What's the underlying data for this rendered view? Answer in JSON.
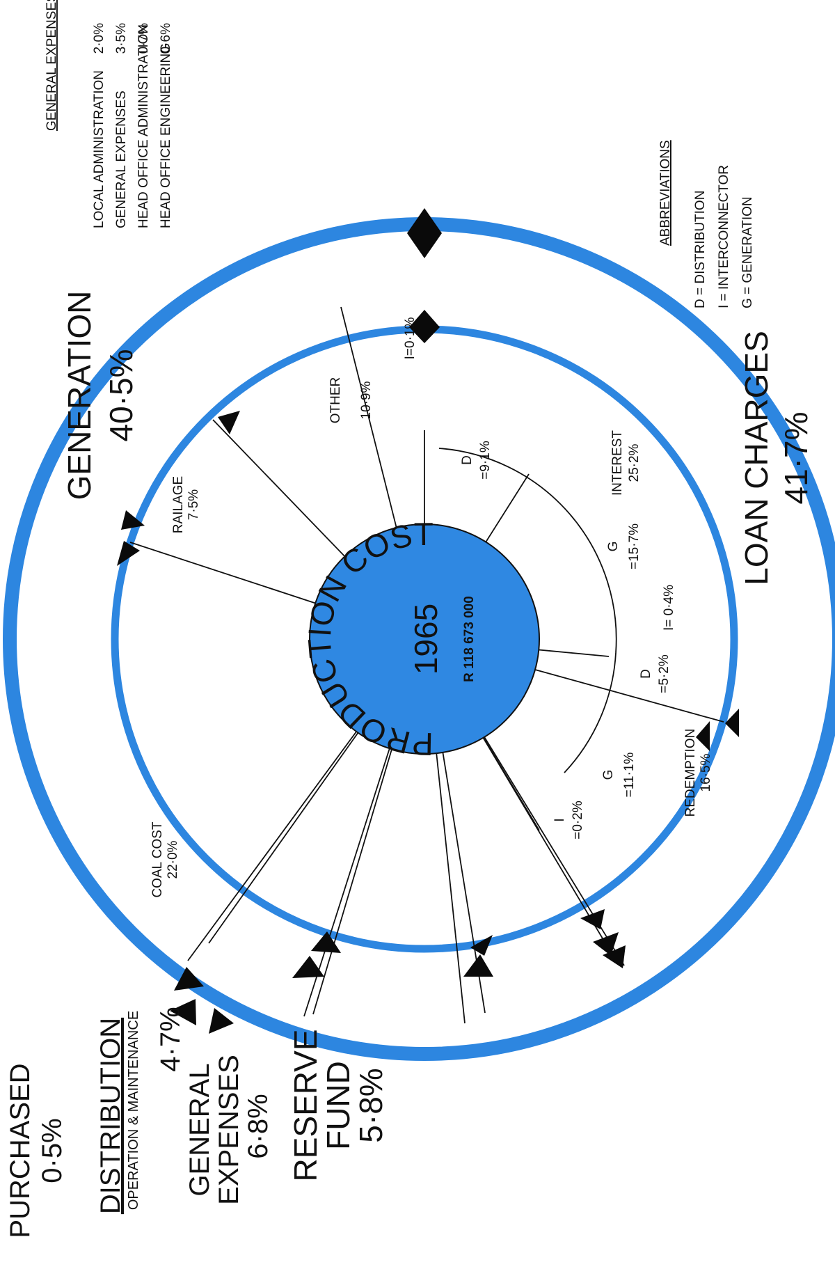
{
  "center": {
    "title": "PRODUCTION COST",
    "year": "1965",
    "amount": "R 118 673 000"
  },
  "outer_segments": [
    {
      "name": "GENERATION",
      "value": "40·5%"
    },
    {
      "name": "LOAN CHARGES",
      "value": "41·7%"
    },
    {
      "name": "PURCHASED",
      "value": "0·5%"
    },
    {
      "name": "DISTRIBUTION",
      "subtitle": "OPERATION & MAINTENANCE",
      "value": "4·7%"
    },
    {
      "name_lines": [
        "GENERAL",
        "EXPENSES"
      ],
      "value": "6·8%"
    },
    {
      "name_lines": [
        "RESERVE",
        "FUND"
      ],
      "value": "5·8%"
    }
  ],
  "inner_segments": [
    {
      "name": "COAL COST",
      "value": "22·0%"
    },
    {
      "name": "RAILAGE",
      "value": "7·5%"
    },
    {
      "name": "OTHER",
      "value": "10·9%"
    },
    {
      "name": "INTEREST",
      "value": "25·2%"
    },
    {
      "name": "REDEMPTION",
      "value": "16·5%"
    }
  ],
  "breakdown": [
    {
      "text": "I=0·1%"
    },
    {
      "letter": "D",
      "value": "=9·1%"
    },
    {
      "letter": "G",
      "value": "=15·7%"
    },
    {
      "text": "I= 0·4%"
    },
    {
      "letter": "D",
      "value": "=5·2%"
    },
    {
      "letter": "G",
      "value": "=11·1%"
    },
    {
      "letter": "I",
      "value": "=0·2%"
    }
  ],
  "general_expenses": {
    "heading": "GENERAL EXPENSES",
    "items": [
      {
        "label": "LOCAL ADMINISTRATION",
        "value": "2·0%"
      },
      {
        "label": "GENERAL EXPENSES",
        "value": "3·5%"
      },
      {
        "label": "HEAD OFFICE ADMINISTRATION",
        "value": "0·7%"
      },
      {
        "label": "HEAD OFFICE ENGINEERING",
        "value": "0·6%"
      }
    ]
  },
  "abbreviations": {
    "heading": "ABBREVIATIONS",
    "items": [
      "D = DISTRIBUTION",
      "I = INTERCONNECTOR",
      "G = GENERATION"
    ]
  },
  "colors": {
    "ring": "#2d86e0",
    "center_fill": "#2f88e2",
    "line": "#111111",
    "arrow": "#0a0a0a"
  }
}
